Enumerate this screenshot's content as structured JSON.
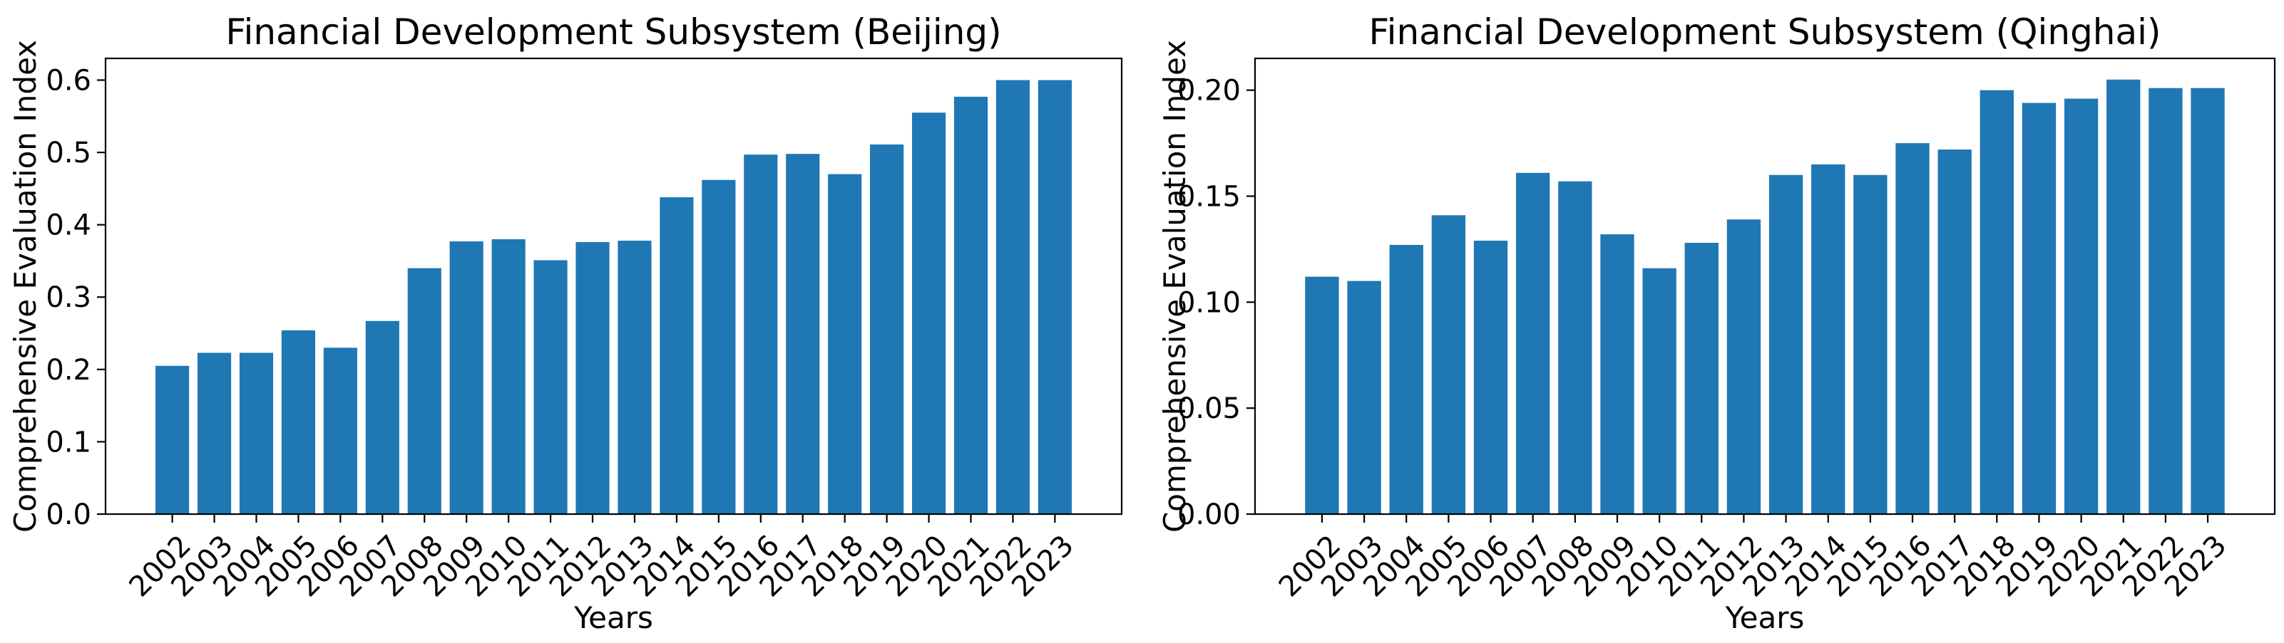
{
  "chart_data": [
    {
      "type": "bar",
      "title": "Financial Development Subsystem (Beijing)",
      "xlabel": "Years",
      "ylabel": "Comprehensive Evaluation Index",
      "categories": [
        "2002",
        "2003",
        "2004",
        "2005",
        "2006",
        "2007",
        "2008",
        "2009",
        "2010",
        "2011",
        "2012",
        "2013",
        "2014",
        "2015",
        "2016",
        "2017",
        "2018",
        "2019",
        "2020",
        "2021",
        "2022",
        "2023"
      ],
      "values": [
        0.205,
        0.223,
        0.223,
        0.254,
        0.23,
        0.267,
        0.34,
        0.377,
        0.38,
        0.351,
        0.376,
        0.378,
        0.438,
        0.462,
        0.497,
        0.498,
        0.47,
        0.511,
        0.555,
        0.577,
        0.6,
        0.6
      ],
      "ylim": [
        0,
        0.63
      ],
      "yticks": [
        "0.0",
        "0.1",
        "0.2",
        "0.3",
        "0.4",
        "0.5",
        "0.6"
      ],
      "ytick_values": [
        0,
        0.1,
        0.2,
        0.3,
        0.4,
        0.5,
        0.6
      ],
      "bar_color": "#1f77b4",
      "grid": false
    },
    {
      "type": "bar",
      "title": "Financial Development Subsystem (Qinghai)",
      "xlabel": "Years",
      "ylabel": "Comprehensive Evaluation Index",
      "categories": [
        "2002",
        "2003",
        "2004",
        "2005",
        "2006",
        "2007",
        "2008",
        "2009",
        "2010",
        "2011",
        "2012",
        "2013",
        "2014",
        "2015",
        "2016",
        "2017",
        "2018",
        "2019",
        "2020",
        "2021",
        "2022",
        "2023"
      ],
      "values": [
        0.112,
        0.11,
        0.127,
        0.141,
        0.129,
        0.161,
        0.157,
        0.132,
        0.116,
        0.128,
        0.139,
        0.16,
        0.165,
        0.16,
        0.175,
        0.172,
        0.2,
        0.194,
        0.196,
        0.205,
        0.201,
        0.201
      ],
      "ylim": [
        0,
        0.215
      ],
      "yticks": [
        "0.00",
        "0.05",
        "0.10",
        "0.15",
        "0.20"
      ],
      "ytick_values": [
        0,
        0.05,
        0.1,
        0.15,
        0.2
      ],
      "bar_color": "#1f77b4",
      "grid": false
    }
  ]
}
